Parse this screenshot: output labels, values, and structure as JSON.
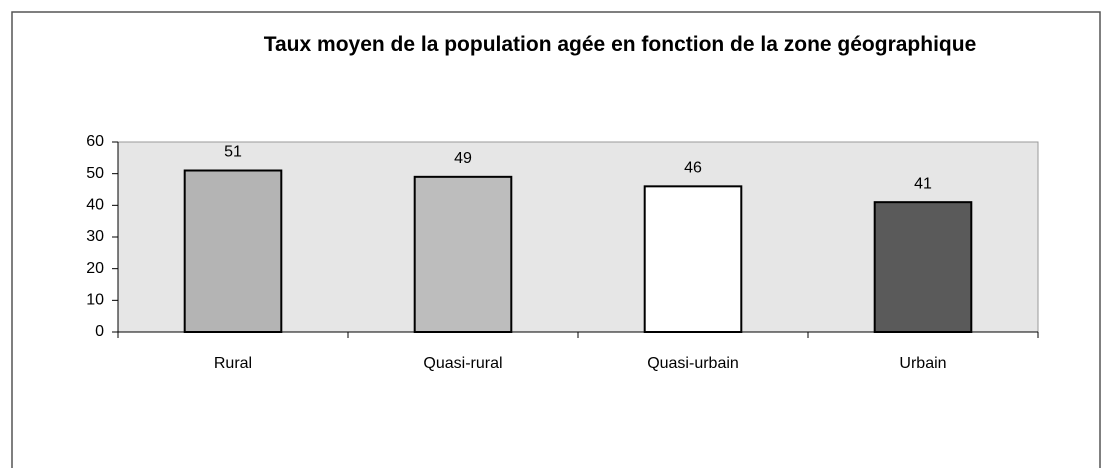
{
  "chart_data": {
    "type": "bar",
    "title": "Taux moyen de la population agée en fonction de la zone géographique",
    "categories": [
      "Rural",
      "Quasi-rural",
      "Quasi-urbain",
      "Urbain"
    ],
    "values": [
      51,
      49,
      46,
      41
    ],
    "colors": [
      "#b4b4b4",
      "#bdbdbd",
      "#ffffff",
      "#5a5a5a"
    ],
    "ylim": [
      0,
      60
    ],
    "yticks": [
      0,
      10,
      20,
      30,
      40,
      50,
      60
    ],
    "grid": false
  }
}
